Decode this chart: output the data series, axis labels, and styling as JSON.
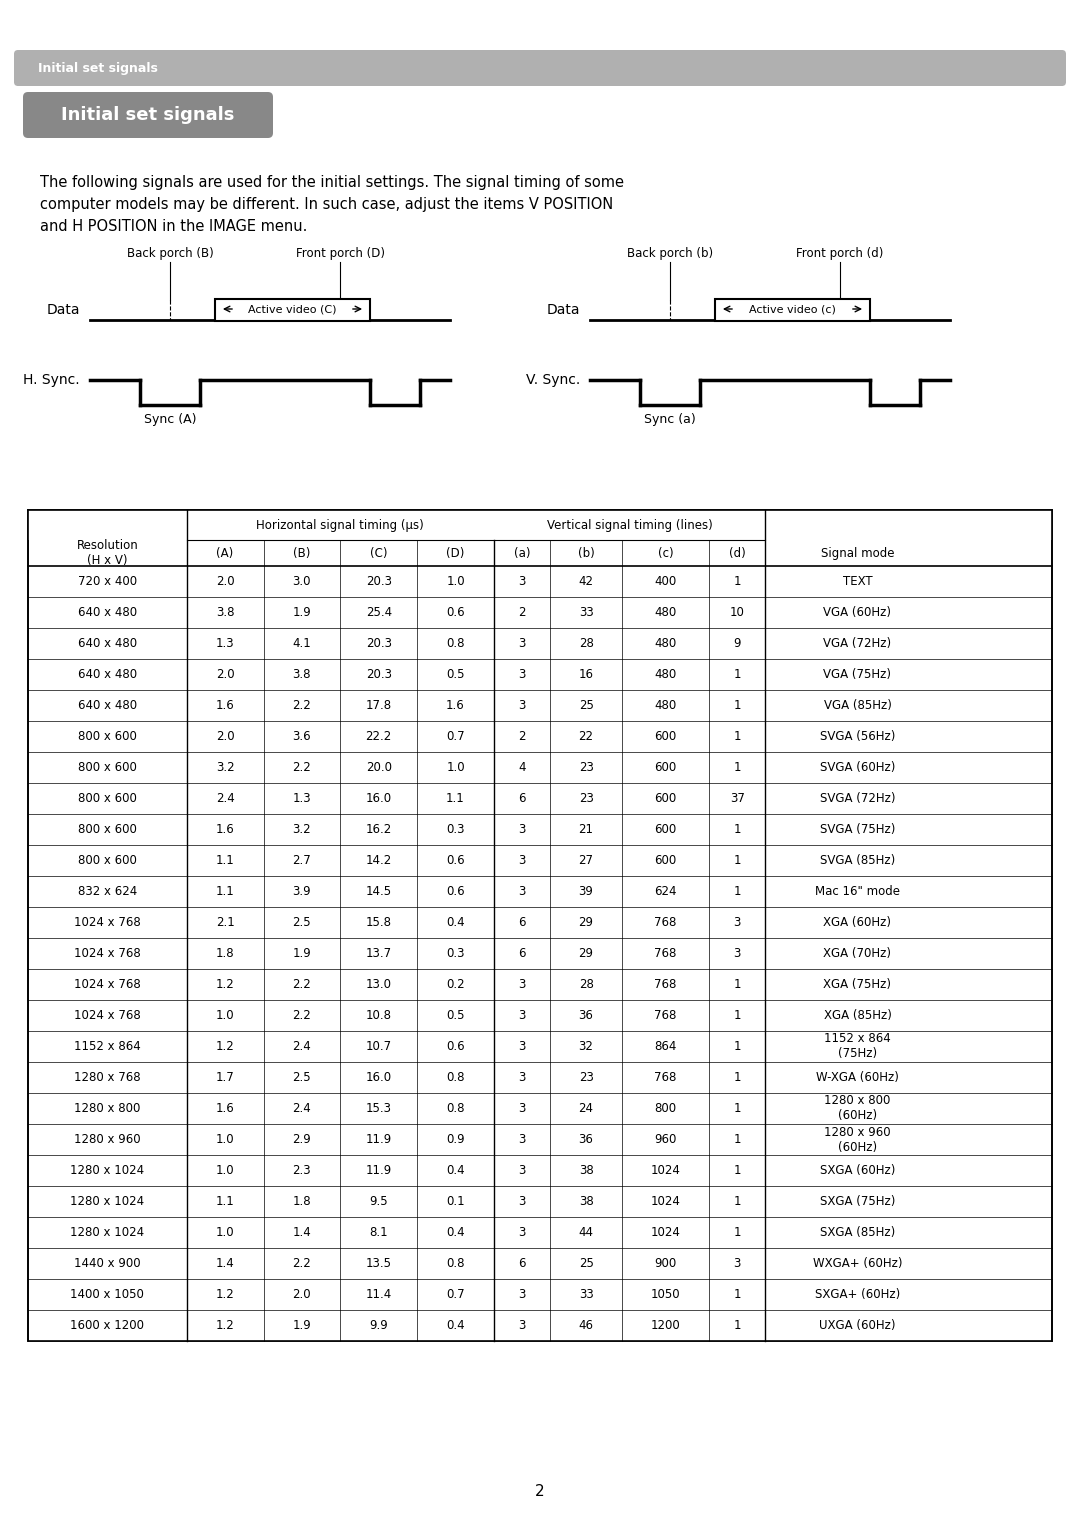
{
  "page_bg": "#ffffff",
  "header_bar_color": "#b0b0b0",
  "header_text": "Initial set signals",
  "header_text_color": "#ffffff",
  "title_box_color": "#888888",
  "title_text": "Initial set signals",
  "title_text_color": "#ffffff",
  "body_text": "The following signals are used for the initial settings. The signal timing of some\ncomputer models may be different. In such case, adjust the items V POSITION\nand H POSITION in the IMAGE menu.",
  "table_headers_row1": [
    "Resolution",
    "Horizontal signal timing (μs)",
    "Vertical signal timing (lines)",
    "Signal mode"
  ],
  "table_headers_row2": [
    "(H x V)",
    "(A)",
    "(B)",
    "(C)",
    "(D)",
    "(a)",
    "(b)",
    "(c)",
    "(d)",
    ""
  ],
  "table_data": [
    [
      "720 x 400",
      "2.0",
      "3.0",
      "20.3",
      "1.0",
      "3",
      "42",
      "400",
      "1",
      "TEXT"
    ],
    [
      "640 x 480",
      "3.8",
      "1.9",
      "25.4",
      "0.6",
      "2",
      "33",
      "480",
      "10",
      "VGA (60Hz)"
    ],
    [
      "640 x 480",
      "1.3",
      "4.1",
      "20.3",
      "0.8",
      "3",
      "28",
      "480",
      "9",
      "VGA (72Hz)"
    ],
    [
      "640 x 480",
      "2.0",
      "3.8",
      "20.3",
      "0.5",
      "3",
      "16",
      "480",
      "1",
      "VGA (75Hz)"
    ],
    [
      "640 x 480",
      "1.6",
      "2.2",
      "17.8",
      "1.6",
      "3",
      "25",
      "480",
      "1",
      "VGA (85Hz)"
    ],
    [
      "800 x 600",
      "2.0",
      "3.6",
      "22.2",
      "0.7",
      "2",
      "22",
      "600",
      "1",
      "SVGA (56Hz)"
    ],
    [
      "800 x 600",
      "3.2",
      "2.2",
      "20.0",
      "1.0",
      "4",
      "23",
      "600",
      "1",
      "SVGA (60Hz)"
    ],
    [
      "800 x 600",
      "2.4",
      "1.3",
      "16.0",
      "1.1",
      "6",
      "23",
      "600",
      "37",
      "SVGA (72Hz)"
    ],
    [
      "800 x 600",
      "1.6",
      "3.2",
      "16.2",
      "0.3",
      "3",
      "21",
      "600",
      "1",
      "SVGA (75Hz)"
    ],
    [
      "800 x 600",
      "1.1",
      "2.7",
      "14.2",
      "0.6",
      "3",
      "27",
      "600",
      "1",
      "SVGA (85Hz)"
    ],
    [
      "832 x 624",
      "1.1",
      "3.9",
      "14.5",
      "0.6",
      "3",
      "39",
      "624",
      "1",
      "Mac 16\" mode"
    ],
    [
      "1024 x 768",
      "2.1",
      "2.5",
      "15.8",
      "0.4",
      "6",
      "29",
      "768",
      "3",
      "XGA (60Hz)"
    ],
    [
      "1024 x 768",
      "1.8",
      "1.9",
      "13.7",
      "0.3",
      "6",
      "29",
      "768",
      "3",
      "XGA (70Hz)"
    ],
    [
      "1024 x 768",
      "1.2",
      "2.2",
      "13.0",
      "0.2",
      "3",
      "28",
      "768",
      "1",
      "XGA (75Hz)"
    ],
    [
      "1024 x 768",
      "1.0",
      "2.2",
      "10.8",
      "0.5",
      "3",
      "36",
      "768",
      "1",
      "XGA (85Hz)"
    ],
    [
      "1152 x 864",
      "1.2",
      "2.4",
      "10.7",
      "0.6",
      "3",
      "32",
      "864",
      "1",
      "1152 x 864\n(75Hz)"
    ],
    [
      "1280 x 768",
      "1.7",
      "2.5",
      "16.0",
      "0.8",
      "3",
      "23",
      "768",
      "1",
      "W-XGA (60Hz)"
    ],
    [
      "1280 x 800",
      "1.6",
      "2.4",
      "15.3",
      "0.8",
      "3",
      "24",
      "800",
      "1",
      "1280 x 800\n(60Hz)"
    ],
    [
      "1280 x 960",
      "1.0",
      "2.9",
      "11.9",
      "0.9",
      "3",
      "36",
      "960",
      "1",
      "1280 x 960\n(60Hz)"
    ],
    [
      "1280 x 1024",
      "1.0",
      "2.3",
      "11.9",
      "0.4",
      "3",
      "38",
      "1024",
      "1",
      "SXGA (60Hz)"
    ],
    [
      "1280 x 1024",
      "1.1",
      "1.8",
      "9.5",
      "0.1",
      "3",
      "38",
      "1024",
      "1",
      "SXGA (75Hz)"
    ],
    [
      "1280 x 1024",
      "1.0",
      "1.4",
      "8.1",
      "0.4",
      "3",
      "44",
      "1024",
      "1",
      "SXGA (85Hz)"
    ],
    [
      "1440 x 900",
      "1.4",
      "2.2",
      "13.5",
      "0.8",
      "6",
      "25",
      "900",
      "3",
      "WXGA+ (60Hz)"
    ],
    [
      "1400 x 1050",
      "1.2",
      "2.0",
      "11.4",
      "0.7",
      "3",
      "33",
      "1050",
      "1",
      "SXGA+ (60Hz)"
    ],
    [
      "1600 x 1200",
      "1.2",
      "1.9",
      "9.9",
      "0.4",
      "3",
      "46",
      "1200",
      "1",
      "UXGA (60Hz)"
    ]
  ],
  "footer_page": "2"
}
